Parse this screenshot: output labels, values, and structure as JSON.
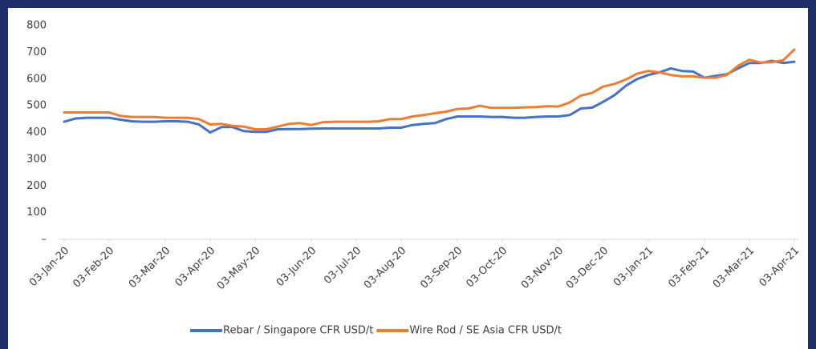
{
  "chart_data": {
    "type": "line",
    "categories": [
      "03-Jan-20",
      null,
      null,
      null,
      "03-Feb-20",
      null,
      null,
      null,
      null,
      "03-Mar-20",
      null,
      null,
      null,
      "03-Apr-20",
      null,
      null,
      null,
      "03-May-20",
      null,
      null,
      null,
      null,
      "03-Jun-20",
      null,
      null,
      null,
      "03-Jul-20",
      null,
      null,
      null,
      "03-Aug-20",
      null,
      null,
      null,
      null,
      "03-Sep-20",
      null,
      null,
      null,
      "03-Oct-20",
      null,
      null,
      null,
      null,
      "03-Nov-20",
      null,
      null,
      null,
      "03-Dec-20",
      null,
      null,
      null,
      "03-Jan-21",
      null,
      null,
      null,
      null,
      "03-Feb-21",
      null,
      null,
      null,
      "03-Mar-21",
      null,
      null,
      null,
      "03-Apr-21"
    ],
    "series": [
      {
        "name": "Rebar / Singapore CFR USD/t",
        "color": "#4472c4",
        "values": [
          440,
          452,
          455,
          455,
          455,
          448,
          442,
          440,
          440,
          442,
          442,
          440,
          430,
          400,
          420,
          420,
          405,
          402,
          402,
          412,
          413,
          413,
          414,
          415,
          415,
          415,
          415,
          415,
          415,
          418,
          418,
          428,
          432,
          435,
          450,
          460,
          460,
          460,
          458,
          458,
          455,
          455,
          458,
          460,
          460,
          465,
          490,
          493,
          515,
          540,
          575,
          600,
          615,
          625,
          640,
          630,
          628,
          605,
          612,
          618,
          640,
          660,
          660,
          668,
          660,
          665
        ]
      },
      {
        "name": "Wire Rod / SE Asia CFR USD/t",
        "color": "#ed7d31",
        "values": [
          475,
          475,
          475,
          475,
          475,
          462,
          458,
          458,
          458,
          455,
          455,
          455,
          450,
          430,
          432,
          425,
          422,
          412,
          412,
          422,
          432,
          435,
          428,
          438,
          440,
          440,
          440,
          440,
          442,
          450,
          450,
          460,
          465,
          472,
          478,
          488,
          490,
          500,
          492,
          492,
          492,
          494,
          495,
          498,
          497,
          512,
          538,
          548,
          572,
          582,
          598,
          620,
          630,
          625,
          615,
          610,
          610,
          605,
          605,
          615,
          650,
          672,
          662,
          663,
          670,
          710
        ]
      }
    ],
    "ylim": [
      0,
      800
    ],
    "yticks": [
      {
        "value": 0,
        "label": "–"
      },
      100,
      200,
      300,
      400,
      500,
      600,
      700,
      800
    ],
    "legend": "bottom"
  }
}
